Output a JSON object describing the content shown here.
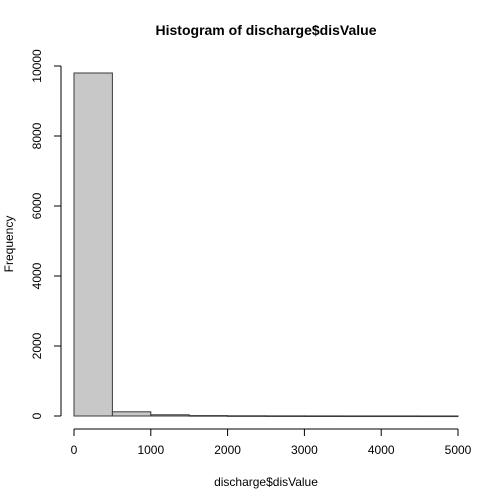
{
  "chart_data": {
    "type": "bar",
    "title": "Histogram of discharge$disValue",
    "xlabel": "discharge$disValue",
    "ylabel": "Frequency",
    "bins": [
      {
        "from": 0,
        "to": 500,
        "count": 9800
      },
      {
        "from": 500,
        "to": 1000,
        "count": 120
      },
      {
        "from": 1000,
        "to": 1500,
        "count": 35
      },
      {
        "from": 1500,
        "to": 2000,
        "count": 12
      },
      {
        "from": 2000,
        "to": 2500,
        "count": 6
      },
      {
        "from": 2500,
        "to": 3000,
        "count": 4
      },
      {
        "from": 3000,
        "to": 3500,
        "count": 3
      },
      {
        "from": 3500,
        "to": 4000,
        "count": 2
      },
      {
        "from": 4000,
        "to": 4500,
        "count": 2
      },
      {
        "from": 4500,
        "to": 5000,
        "count": 1
      }
    ],
    "xlim": [
      0,
      5000
    ],
    "ylim": [
      0,
      10000
    ],
    "xticks": [
      0,
      1000,
      2000,
      3000,
      4000,
      5000
    ],
    "yticks": [
      0,
      2000,
      4000,
      6000,
      8000,
      10000
    ],
    "xtick_labels": [
      "0",
      "1000",
      "2000",
      "3000",
      "4000",
      "5000"
    ],
    "ytick_labels": [
      "0",
      "2000",
      "4000",
      "6000",
      "8000",
      "10000"
    ],
    "grid": false,
    "colors": {
      "bar_fill": "#c8c8c8",
      "bar_stroke": "#3a3a3a"
    }
  }
}
